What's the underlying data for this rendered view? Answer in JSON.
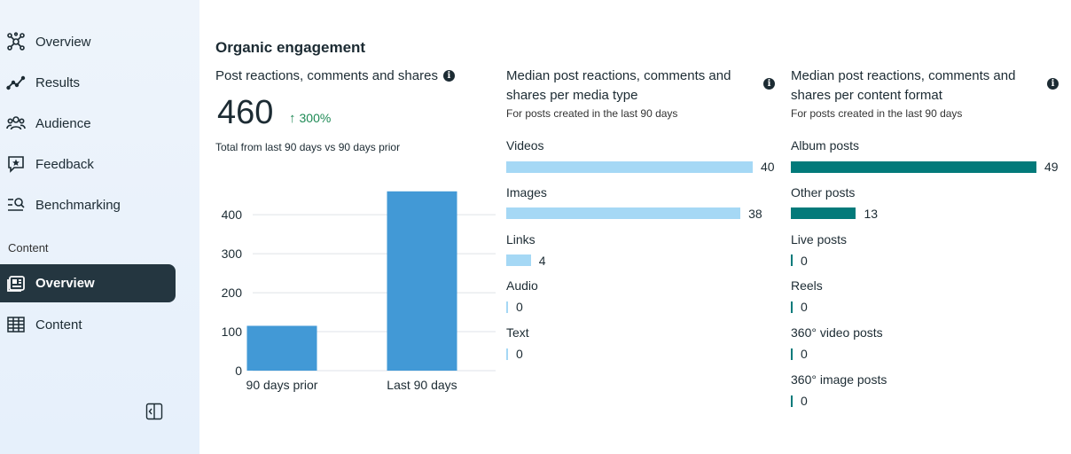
{
  "sidebar": {
    "items": [
      {
        "label": "Overview",
        "icon": "overview-icon"
      },
      {
        "label": "Results",
        "icon": "results-icon"
      },
      {
        "label": "Audience",
        "icon": "audience-icon"
      },
      {
        "label": "Feedback",
        "icon": "feedback-icon"
      },
      {
        "label": "Benchmarking",
        "icon": "benchmarking-icon"
      }
    ],
    "content_section_label": "Content",
    "content_items": [
      {
        "label": "Overview",
        "icon": "content-overview-icon",
        "active": true
      },
      {
        "label": "Content",
        "icon": "table-icon",
        "active": false
      }
    ]
  },
  "main": {
    "section_title": "Organic engagement",
    "engagement": {
      "title": "Post reactions, comments and shares",
      "value": "460",
      "delta": "300%",
      "note": "Total from last 90 days vs 90 days prior"
    },
    "media_type": {
      "title": "Median post reactions, comments and shares per media type",
      "subtitle": "For posts created in the last 90 days",
      "bar_color": "#a5d8f5",
      "rows": [
        {
          "label": "Videos",
          "value": "40"
        },
        {
          "label": "Images",
          "value": "38"
        },
        {
          "label": "Links",
          "value": "4"
        },
        {
          "label": "Audio",
          "value": "0"
        },
        {
          "label": "Text",
          "value": "0"
        }
      ]
    },
    "content_format": {
      "title": "Median post reactions, comments and shares per content format",
      "subtitle": "For posts created in the last 90 days",
      "bar_color": "#027a7a",
      "rows": [
        {
          "label": "Album posts",
          "value": "49"
        },
        {
          "label": "Other posts",
          "value": "13"
        },
        {
          "label": "Live posts",
          "value": "0"
        },
        {
          "label": "Reels",
          "value": "0"
        },
        {
          "label": "360° video posts",
          "value": "0"
        },
        {
          "label": "360° image posts",
          "value": "0"
        }
      ]
    }
  },
  "chart_data": {
    "type": "bar",
    "categories": [
      "90 days prior",
      "Last 90 days"
    ],
    "values": [
      115,
      460
    ],
    "yticks": [
      "0",
      "100",
      "200",
      "300",
      "400"
    ],
    "ylim": [
      0,
      480
    ],
    "bar_color": "#4299d6",
    "grid": true
  },
  "colors": {
    "accent_positive": "#1e8a55",
    "sidebar_active_bg": "#243640"
  }
}
